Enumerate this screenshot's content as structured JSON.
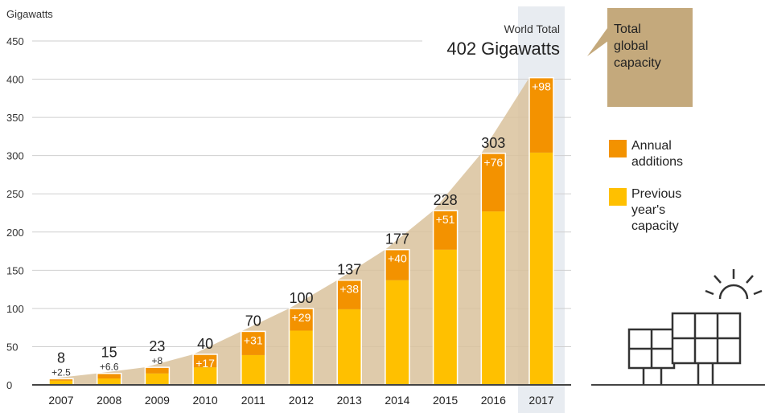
{
  "chart_data": {
    "type": "bar",
    "stacked": true,
    "ylabel": "Gigawatts",
    "ylim": [
      0,
      450
    ],
    "yticks": [
      0,
      50,
      100,
      150,
      200,
      250,
      300,
      350,
      400,
      450
    ],
    "grid": true,
    "categories": [
      "2007",
      "2008",
      "2009",
      "2010",
      "2011",
      "2012",
      "2013",
      "2014",
      "2015",
      "2016",
      "2017"
    ],
    "series": [
      {
        "name": "Previous year's capacity",
        "values": [
          5.5,
          8.4,
          15,
          23,
          39,
          71,
          99,
          137,
          177,
          227,
          304
        ]
      },
      {
        "name": "Annual additions",
        "values": [
          2.5,
          6.6,
          8,
          17,
          31,
          29,
          38,
          40,
          51,
          76,
          98
        ]
      }
    ],
    "totals": [
      "8",
      "15",
      "23",
      "40",
      "70",
      "100",
      "137",
      "177",
      "228",
      "303",
      ""
    ],
    "addition_labels": [
      "+2.5",
      "+6.6",
      "+8",
      "+17",
      "+31",
      "+29",
      "+38",
      "+40",
      "+51",
      "+76",
      "+98"
    ],
    "highlight_category": "2017",
    "annotation": {
      "line1": "World Total",
      "line2": "402 Gigawatts"
    },
    "legend_placement": "right",
    "colors": {
      "previous": "#ffc000",
      "additions": "#f39200",
      "area": "#d9c29c",
      "highlight": "#e8ecf1",
      "callout": "#c4a97c"
    }
  },
  "callout": {
    "text_lines": [
      "Total",
      "global",
      "capacity"
    ]
  },
  "legend": [
    {
      "lines": [
        "Annual",
        "additions"
      ]
    },
    {
      "lines": [
        "Previous",
        "year's",
        "capacity"
      ]
    }
  ],
  "icons": {
    "illustration": "solar-panels-sun-icon"
  }
}
